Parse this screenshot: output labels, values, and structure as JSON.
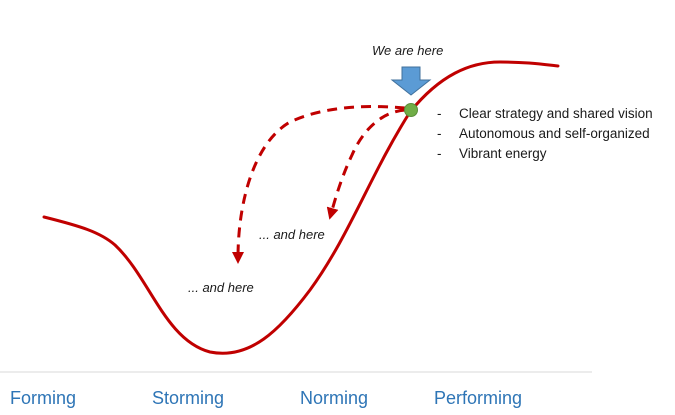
{
  "annotation": {
    "marker_label": "We are here",
    "branch_labels": [
      "... and here",
      "... and here"
    ]
  },
  "attributes": [
    "Clear strategy and shared vision",
    "Autonomous and self-organized",
    "Vibrant energy"
  ],
  "stages": [
    "Forming",
    "Storming",
    "Norming",
    "Performing"
  ],
  "colors": {
    "curve": "#c00000",
    "marker_dot": "#70ad47",
    "arrow": "#5b9bd5",
    "stage_text": "#2e75b6",
    "baseline": "#d9d9d9"
  }
}
